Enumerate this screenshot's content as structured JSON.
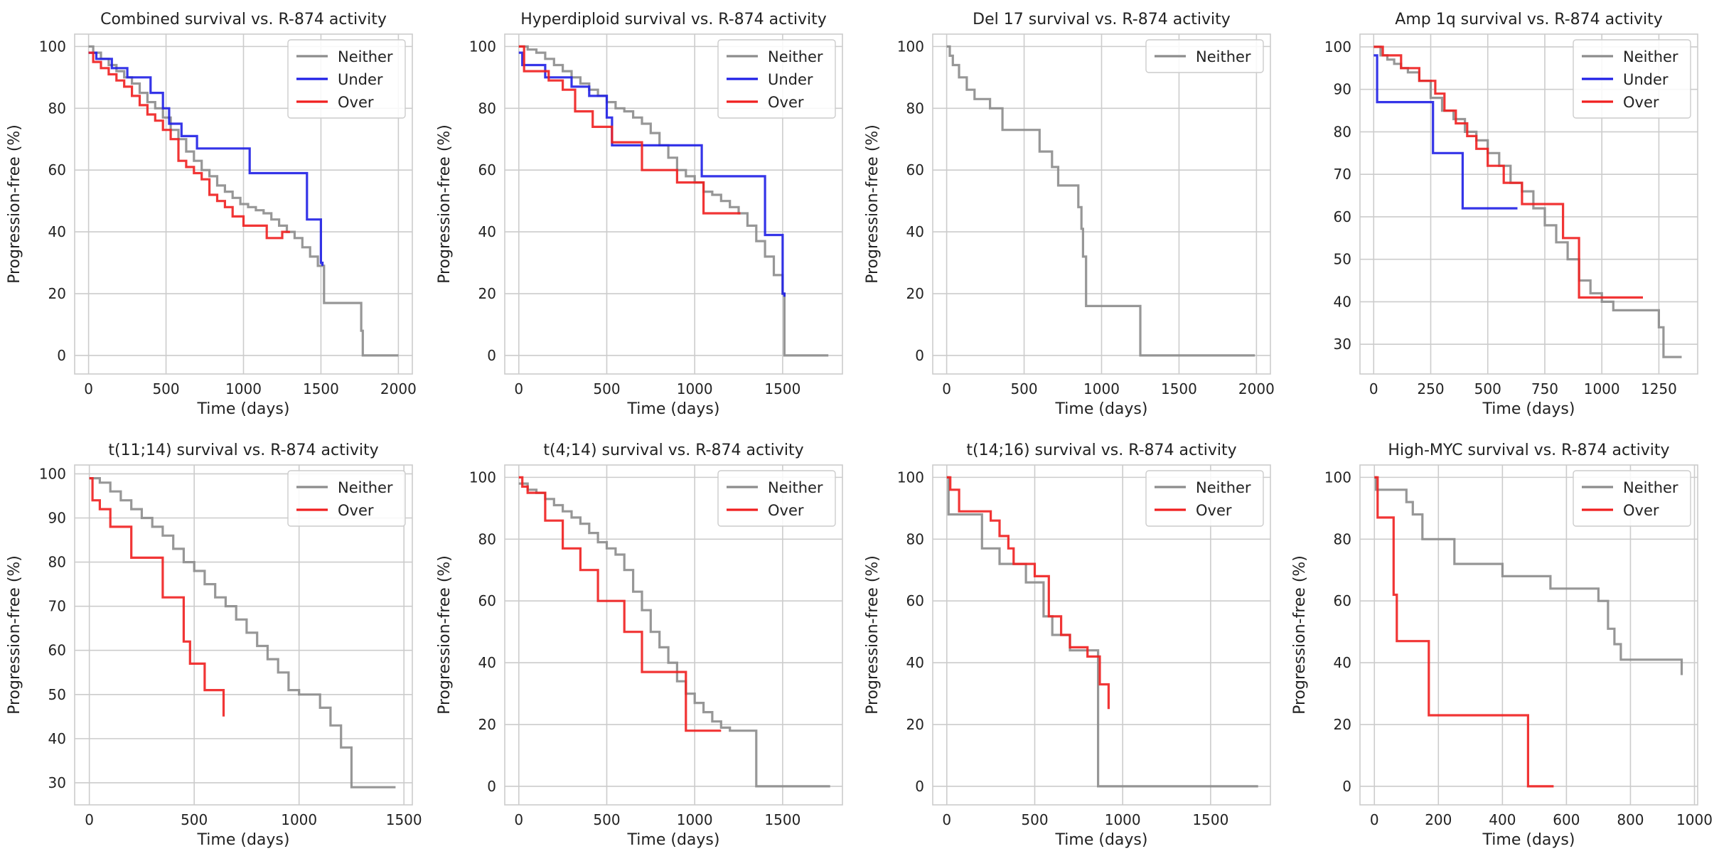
{
  "colors": {
    "Neither": "#8c8c8c",
    "Under": "#1f1fe6",
    "Over": "#f01f1f"
  },
  "chart_data": [
    {
      "type": "line",
      "title": "Combined survival vs. R-874 activity",
      "xlabel": "Time (days)",
      "ylabel": "Progression-free (%)",
      "xlim": [
        -90,
        2090
      ],
      "ylim": [
        -6,
        104
      ],
      "xticks": [
        0,
        500,
        1000,
        1500,
        2000
      ],
      "yticks": [
        0,
        20,
        40,
        60,
        80,
        100
      ],
      "grid": true,
      "legend": "top-right",
      "series": [
        {
          "name": "Neither",
          "step": true,
          "x": [
            0,
            30,
            80,
            130,
            180,
            230,
            280,
            330,
            380,
            430,
            480,
            530,
            580,
            630,
            680,
            730,
            780,
            830,
            880,
            930,
            980,
            1030,
            1080,
            1130,
            1180,
            1230,
            1280,
            1330,
            1380,
            1430,
            1480,
            1520,
            1760,
            1770,
            1800,
            2000
          ],
          "y": [
            100,
            98,
            96,
            94,
            92,
            90,
            88,
            85,
            82,
            80,
            77,
            73,
            70,
            66,
            63,
            60,
            58,
            55,
            53,
            51,
            49,
            48,
            47,
            46,
            44,
            42,
            40,
            38,
            35,
            32,
            29,
            17,
            8,
            0,
            0,
            0
          ]
        },
        {
          "name": "Under",
          "step": true,
          "x": [
            0,
            50,
            150,
            250,
            400,
            480,
            520,
            600,
            700,
            1040,
            1410,
            1500,
            1510
          ],
          "y": [
            98,
            96,
            93,
            90,
            85,
            80,
            75,
            71,
            67,
            59,
            44,
            30,
            29
          ]
        },
        {
          "name": "Over",
          "step": true,
          "x": [
            0,
            30,
            80,
            130,
            180,
            230,
            280,
            330,
            380,
            430,
            480,
            530,
            580,
            630,
            680,
            730,
            780,
            830,
            880,
            930,
            1000,
            1150,
            1250,
            1300
          ],
          "y": [
            98,
            95,
            93,
            91,
            89,
            87,
            84,
            81,
            78,
            76,
            73,
            70,
            63,
            61,
            59,
            57,
            52,
            50,
            48,
            45,
            42,
            38,
            40,
            40
          ]
        }
      ]
    },
    {
      "type": "line",
      "title": "Hyperdiploid survival vs. R-874 activity",
      "xlabel": "Time (days)",
      "ylabel": "Progression-free (%)",
      "xlim": [
        -80,
        1840
      ],
      "ylim": [
        -6,
        104
      ],
      "xticks": [
        0,
        500,
        1000,
        1500
      ],
      "yticks": [
        0,
        20,
        40,
        60,
        80,
        100
      ],
      "grid": true,
      "legend": "top-right",
      "series": [
        {
          "name": "Neither",
          "step": true,
          "x": [
            0,
            50,
            100,
            150,
            200,
            250,
            300,
            350,
            400,
            450,
            500,
            550,
            600,
            650,
            700,
            750,
            800,
            850,
            900,
            950,
            1000,
            1050,
            1100,
            1150,
            1200,
            1250,
            1300,
            1350,
            1400,
            1450,
            1500,
            1510,
            1760
          ],
          "y": [
            100,
            99,
            98,
            96,
            94,
            92,
            90,
            88,
            86,
            84,
            82,
            80,
            79,
            77,
            75,
            72,
            68,
            64,
            60,
            58,
            56,
            53,
            52,
            50,
            48,
            46,
            42,
            37,
            32,
            26,
            20,
            0,
            0
          ]
        },
        {
          "name": "Under",
          "step": true,
          "x": [
            0,
            20,
            150,
            300,
            400,
            500,
            530,
            650,
            1040,
            1400,
            1500,
            1510
          ],
          "y": [
            98,
            94,
            90,
            87,
            84,
            77,
            68,
            68,
            58,
            39,
            20,
            19
          ]
        },
        {
          "name": "Over",
          "step": true,
          "x": [
            0,
            30,
            170,
            250,
            320,
            420,
            530,
            700,
            900,
            1050,
            1200,
            1260
          ],
          "y": [
            100,
            92,
            89,
            86,
            79,
            74,
            69,
            60,
            56,
            46,
            46,
            46
          ]
        }
      ]
    },
    {
      "type": "line",
      "title": "Del 17 survival vs. R-874 activity",
      "xlabel": "Time (days)",
      "ylabel": "Progression-free (%)",
      "xlim": [
        -90,
        2090
      ],
      "ylim": [
        -6,
        104
      ],
      "xticks": [
        0,
        500,
        1000,
        1500,
        2000
      ],
      "yticks": [
        0,
        20,
        40,
        60,
        80,
        100
      ],
      "grid": true,
      "legend": "top-right",
      "series": [
        {
          "name": "Neither",
          "step": true,
          "x": [
            0,
            20,
            40,
            80,
            130,
            180,
            280,
            360,
            600,
            680,
            720,
            850,
            870,
            880,
            900,
            1250,
            1990
          ],
          "y": [
            100,
            97,
            94,
            90,
            86,
            83,
            80,
            73,
            66,
            61,
            55,
            48,
            41,
            32,
            16,
            0,
            0
          ]
        }
      ]
    },
    {
      "type": "line",
      "title": "Amp 1q survival vs. R-874 activity",
      "xlabel": "Time (days)",
      "ylabel": "",
      "xlim": [
        -60,
        1420
      ],
      "ylim": [
        23,
        103
      ],
      "xticks": [
        0,
        250,
        500,
        750,
        1000,
        1250
      ],
      "yticks": [
        30,
        40,
        50,
        60,
        70,
        80,
        90,
        100
      ],
      "grid": true,
      "legend": "top-right",
      "series": [
        {
          "name": "Neither",
          "step": true,
          "x": [
            0,
            30,
            60,
            90,
            120,
            150,
            200,
            250,
            300,
            350,
            400,
            450,
            500,
            550,
            600,
            650,
            700,
            750,
            800,
            850,
            900,
            950,
            1000,
            1050,
            1100,
            1150,
            1200,
            1250,
            1270,
            1350
          ],
          "y": [
            100,
            98,
            97,
            96,
            95,
            94,
            92,
            88,
            85,
            83,
            80,
            78,
            75,
            72,
            68,
            66,
            62,
            58,
            54,
            50,
            45,
            42,
            40,
            38,
            38,
            38,
            38,
            34,
            27,
            27
          ]
        },
        {
          "name": "Under",
          "step": true,
          "x": [
            0,
            15,
            260,
            390,
            600,
            630
          ],
          "y": [
            98,
            87,
            75,
            62,
            62,
            62
          ]
        },
        {
          "name": "Over",
          "step": true,
          "x": [
            0,
            40,
            120,
            200,
            270,
            310,
            360,
            410,
            450,
            500,
            570,
            650,
            830,
            900,
            1000,
            1180
          ],
          "y": [
            100,
            98,
            95,
            92,
            89,
            85,
            82,
            79,
            76,
            72,
            68,
            63,
            55,
            41,
            41,
            41
          ]
        }
      ]
    },
    {
      "type": "line",
      "title": "t(11;14) survival vs. R-874 activity",
      "xlabel": "Time (days)",
      "ylabel": "Progression-free (%)",
      "xlim": [
        -70,
        1540
      ],
      "ylim": [
        25,
        102
      ],
      "xticks": [
        0,
        500,
        1000,
        1500
      ],
      "yticks": [
        30,
        40,
        50,
        60,
        70,
        80,
        90,
        100
      ],
      "grid": true,
      "legend": "top-right",
      "series": [
        {
          "name": "Neither",
          "step": true,
          "x": [
            0,
            50,
            100,
            150,
            200,
            250,
            300,
            350,
            400,
            450,
            500,
            550,
            600,
            650,
            700,
            750,
            800,
            850,
            900,
            950,
            1000,
            1050,
            1100,
            1150,
            1200,
            1250,
            1460
          ],
          "y": [
            99,
            98,
            96,
            94,
            92,
            90,
            88,
            86,
            83,
            80,
            78,
            75,
            72,
            70,
            67,
            64,
            61,
            58,
            55,
            51,
            50,
            50,
            47,
            43,
            38,
            29,
            29
          ]
        },
        {
          "name": "Over",
          "step": true,
          "x": [
            0,
            15,
            50,
            100,
            200,
            350,
            450,
            480,
            550,
            640
          ],
          "y": [
            99,
            94,
            92,
            88,
            81,
            72,
            62,
            57,
            51,
            45
          ]
        }
      ]
    },
    {
      "type": "line",
      "title": "t(4;14) survival vs. R-874 activity",
      "xlabel": "Time (days)",
      "ylabel": "Progression-free (%)",
      "xlim": [
        -80,
        1840
      ],
      "ylim": [
        -6,
        104
      ],
      "xticks": [
        0,
        500,
        1000,
        1500
      ],
      "yticks": [
        0,
        20,
        40,
        60,
        80,
        100
      ],
      "grid": true,
      "legend": "top-right",
      "series": [
        {
          "name": "Neither",
          "step": true,
          "x": [
            0,
            50,
            100,
            150,
            200,
            250,
            300,
            350,
            400,
            450,
            500,
            550,
            600,
            650,
            700,
            750,
            800,
            850,
            900,
            950,
            1000,
            1050,
            1100,
            1150,
            1200,
            1350,
            1770
          ],
          "y": [
            98,
            96,
            95,
            93,
            91,
            89,
            87,
            85,
            82,
            79,
            77,
            75,
            70,
            63,
            57,
            50,
            45,
            40,
            34,
            30,
            27,
            24,
            21,
            19,
            18,
            0,
            0
          ]
        },
        {
          "name": "Over",
          "step": true,
          "x": [
            0,
            20,
            50,
            150,
            250,
            350,
            450,
            600,
            700,
            950,
            1150
          ],
          "y": [
            100,
            97,
            95,
            86,
            77,
            70,
            60,
            50,
            37,
            18,
            18
          ]
        }
      ]
    },
    {
      "type": "line",
      "title": "t(14;16) survival vs. R-874 activity",
      "xlabel": "Time (days)",
      "ylabel": "Progression-free (%)",
      "xlim": [
        -80,
        1840
      ],
      "ylim": [
        -6,
        104
      ],
      "xticks": [
        0,
        500,
        1000,
        1500
      ],
      "yticks": [
        0,
        20,
        40,
        60,
        80,
        100
      ],
      "grid": true,
      "legend": "top-right",
      "series": [
        {
          "name": "Neither",
          "step": true,
          "x": [
            0,
            10,
            200,
            300,
            450,
            550,
            600,
            700,
            800,
            860,
            1770
          ],
          "y": [
            100,
            88,
            77,
            72,
            66,
            55,
            49,
            44,
            44,
            0,
            0
          ]
        },
        {
          "name": "Over",
          "step": true,
          "x": [
            0,
            20,
            70,
            200,
            250,
            300,
            350,
            380,
            500,
            580,
            650,
            700,
            800,
            870,
            920
          ],
          "y": [
            100,
            96,
            89,
            89,
            86,
            81,
            77,
            72,
            68,
            55,
            49,
            45,
            42,
            33,
            25
          ]
        }
      ]
    },
    {
      "type": "line",
      "title": "High-MYC survival vs. R-874 activity",
      "xlabel": "Time (days)",
      "ylabel": "Progression-free (%)",
      "xlim": [
        -45,
        1010
      ],
      "ylim": [
        -6,
        104
      ],
      "xticks": [
        0,
        200,
        400,
        600,
        800,
        1000
      ],
      "yticks": [
        0,
        20,
        40,
        60,
        80,
        100
      ],
      "grid": true,
      "legend": "top-right",
      "series": [
        {
          "name": "Neither",
          "step": true,
          "x": [
            0,
            5,
            100,
            120,
            150,
            250,
            400,
            550,
            700,
            730,
            750,
            770,
            960
          ],
          "y": [
            100,
            96,
            92,
            88,
            80,
            72,
            68,
            64,
            60,
            51,
            46,
            41,
            36
          ]
        },
        {
          "name": "Over",
          "step": true,
          "x": [
            0,
            10,
            60,
            70,
            170,
            480,
            560
          ],
          "y": [
            100,
            87,
            62,
            47,
            23,
            0,
            0
          ]
        }
      ]
    }
  ]
}
